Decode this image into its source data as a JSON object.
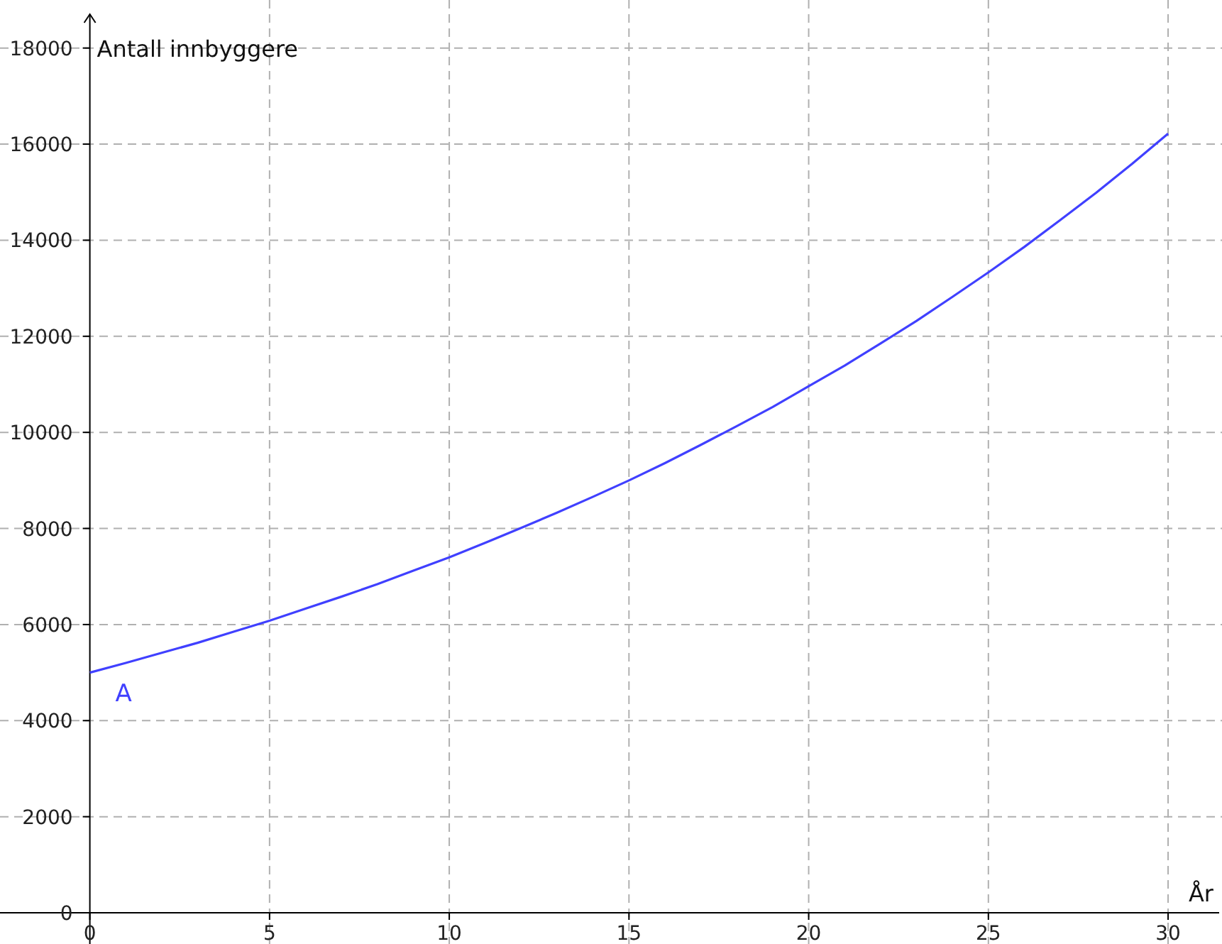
{
  "chart_data": {
    "type": "line",
    "xlabel": "År",
    "ylabel": "Antall innbyggere",
    "x": [
      0,
      1,
      2,
      3,
      4,
      5,
      6,
      7,
      8,
      9,
      10,
      11,
      12,
      13,
      14,
      15,
      16,
      17,
      18,
      19,
      20,
      21,
      22,
      23,
      24,
      25,
      26,
      27,
      28,
      29,
      30
    ],
    "series": [
      {
        "name": "A",
        "color": "#4040ff",
        "values": [
          5000,
          5200,
          5410,
          5620,
          5850,
          6080,
          6330,
          6580,
          6840,
          7120,
          7400,
          7700,
          8010,
          8330,
          8660,
          9000,
          9360,
          9740,
          10130,
          10530,
          10960,
          11390,
          11850,
          12320,
          12820,
          13330,
          13860,
          14420,
          14990,
          15590,
          16220
        ]
      }
    ],
    "xlim": [
      -2.5,
      31.5
    ],
    "ylim": [
      -650,
      19000
    ],
    "xticks": [
      0,
      5,
      10,
      15,
      20,
      25,
      30
    ],
    "yticks": [
      0,
      2000,
      4000,
      6000,
      8000,
      10000,
      12000,
      14000,
      16000,
      18000
    ],
    "grid": true,
    "legend": false,
    "marker": "none",
    "line_style": "solid"
  }
}
